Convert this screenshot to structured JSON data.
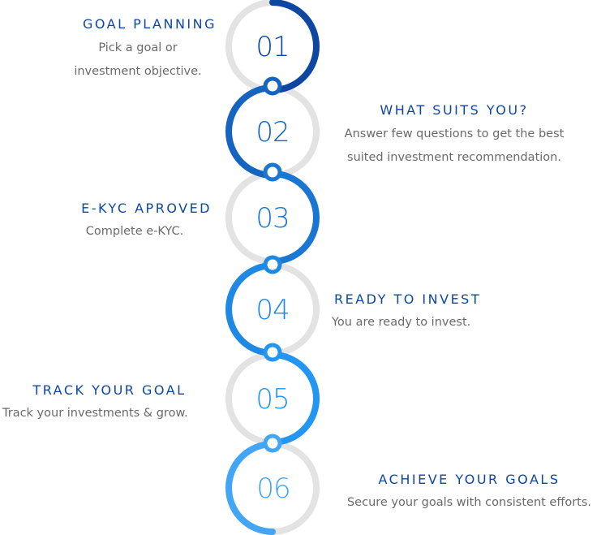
{
  "steps": [
    {
      "number": "01",
      "title": "GOAL PLANNING",
      "description": [
        "Pick a goal or",
        "investment objective."
      ],
      "color": "#0d47a1"
    },
    {
      "number": "02",
      "title": "WHAT SUITS YOU?",
      "description": [
        "Answer few questions to get the best",
        "suited investment recommendation."
      ],
      "color": "#1565c0"
    },
    {
      "number": "03",
      "title": "E-KYC APROVED",
      "description": [
        "Complete e-KYC."
      ],
      "color": "#1976d2"
    },
    {
      "number": "04",
      "title": "READY TO INVEST",
      "description": [
        "You are ready  to invest."
      ],
      "color": "#1e88e5"
    },
    {
      "number": "05",
      "title": "TRACK YOUR GOAL",
      "description": [
        "Track your investments & grow."
      ],
      "color": "#2196f3"
    },
    {
      "number": "06",
      "title": "ACHIEVE YOUR GOALS",
      "description": [
        "Secure your goals with consistent efforts."
      ],
      "color": "#42a5f5"
    }
  ],
  "ring_track_color": "#e3e3e3"
}
